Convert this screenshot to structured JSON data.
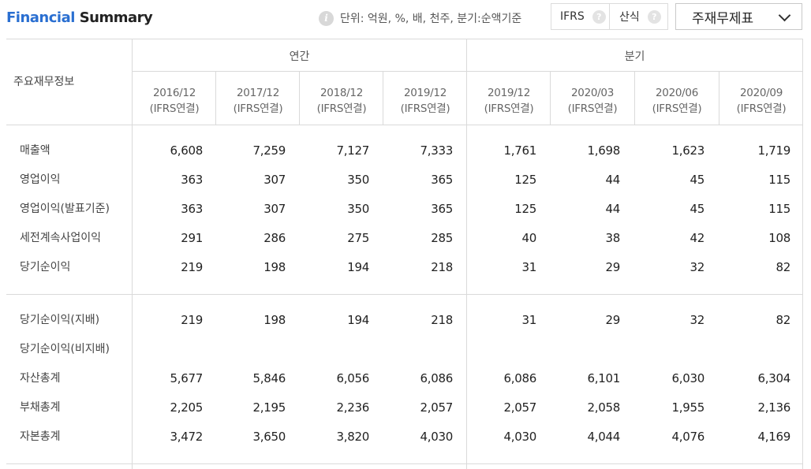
{
  "header": {
    "title_part1": "Financial",
    "title_part2": "Summary",
    "info_icon_glyph": "i",
    "unit_text": "단위: 억원, %, 배, 천주, 분기:순액기준",
    "toggle_ifrs_label": "IFRS",
    "toggle_calc_label": "산식",
    "help_glyph": "?",
    "statement_select_value": "주재무제표"
  },
  "table": {
    "corner_label": "주요재무정보",
    "groups": [
      {
        "label": "연간"
      },
      {
        "label": "분기"
      }
    ],
    "columns": [
      {
        "period": "2016/12",
        "basis": "(IFRS연결)"
      },
      {
        "period": "2017/12",
        "basis": "(IFRS연결)"
      },
      {
        "period": "2018/12",
        "basis": "(IFRS연결)"
      },
      {
        "period": "2019/12",
        "basis": "(IFRS연결)"
      },
      {
        "period": "2019/12",
        "basis": "(IFRS연결)"
      },
      {
        "period": "2020/03",
        "basis": "(IFRS연결)"
      },
      {
        "period": "2020/06",
        "basis": "(IFRS연결)"
      },
      {
        "period": "2020/09",
        "basis": "(IFRS연결)"
      }
    ],
    "rows": [
      {
        "label": "매출액",
        "values": [
          "6,608",
          "7,259",
          "7,127",
          "7,333",
          "1,761",
          "1,698",
          "1,623",
          "1,719"
        ]
      },
      {
        "label": "영업이익",
        "values": [
          "363",
          "307",
          "350",
          "365",
          "125",
          "44",
          "45",
          "115"
        ]
      },
      {
        "label": "영업이익(발표기준)",
        "values": [
          "363",
          "307",
          "350",
          "365",
          "125",
          "44",
          "45",
          "115"
        ]
      },
      {
        "label": "세전계속사업이익",
        "values": [
          "291",
          "286",
          "275",
          "285",
          "40",
          "38",
          "42",
          "108"
        ]
      },
      {
        "label": "당기순이익",
        "values": [
          "219",
          "198",
          "194",
          "218",
          "31",
          "29",
          "32",
          "82"
        ]
      },
      {
        "label": "당기순이익(지배)",
        "values": [
          "219",
          "198",
          "194",
          "218",
          "31",
          "29",
          "32",
          "82"
        ]
      },
      {
        "label": "당기순이익(비지배)",
        "values": [
          "",
          "",
          "",
          "",
          "",
          "",
          "",
          ""
        ]
      },
      {
        "label": "자산총계",
        "values": [
          "5,677",
          "5,846",
          "6,056",
          "6,086",
          "6,086",
          "6,101",
          "6,030",
          "6,304"
        ]
      },
      {
        "label": "부채총계",
        "values": [
          "2,205",
          "2,195",
          "2,236",
          "2,057",
          "2,057",
          "2,058",
          "1,955",
          "2,136"
        ]
      },
      {
        "label": "자본총계",
        "values": [
          "3,472",
          "3,650",
          "3,820",
          "4,030",
          "4,030",
          "4,044",
          "4,076",
          "4,169"
        ]
      }
    ]
  }
}
